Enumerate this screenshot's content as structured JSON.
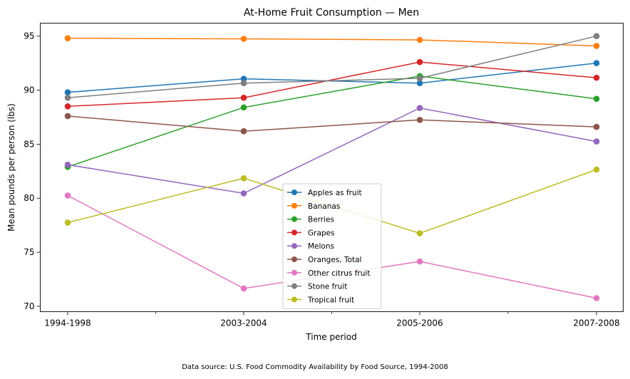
{
  "chart_data": {
    "type": "line",
    "title": "At-Home Fruit Consumption — Men",
    "xlabel": "Time period",
    "ylabel": "Mean pounds per person (lbs)",
    "categories": [
      "1994-1998",
      "2003-2004",
      "2005-2006",
      "2007-2008"
    ],
    "ylim": [
      69.5,
      96.2
    ],
    "yticks": [
      70,
      75,
      80,
      85,
      90,
      95
    ],
    "grid": false,
    "legend_position": "lower center",
    "series": [
      {
        "name": "Apples as fruit",
        "color": "#1f77b4",
        "values": [
          89.8,
          91.05,
          90.65,
          92.5
        ]
      },
      {
        "name": "Bananas",
        "color": "#ff7f0e",
        "values": [
          94.8,
          94.75,
          94.65,
          94.1
        ]
      },
      {
        "name": "Berries",
        "color": "#2ca02c",
        "values": [
          82.9,
          88.4,
          91.3,
          89.2
        ]
      },
      {
        "name": "Grapes",
        "color": "#d62728",
        "values": [
          88.5,
          89.3,
          92.6,
          91.15
        ]
      },
      {
        "name": "Melons",
        "color": "#9467bd",
        "values": [
          83.1,
          80.45,
          88.35,
          85.25
        ]
      },
      {
        "name": "Oranges, Total",
        "color": "#8c564b",
        "values": [
          87.6,
          86.2,
          87.25,
          86.6
        ]
      },
      {
        "name": "Other citrus fruit",
        "color": "#e377c2",
        "values": [
          80.25,
          71.65,
          74.15,
          70.75
        ]
      },
      {
        "name": "Stone fruit",
        "color": "#7f7f7f",
        "values": [
          89.3,
          90.65,
          91.1,
          95.0
        ]
      },
      {
        "name": "Tropical fruit",
        "color": "#bcbd22",
        "values": [
          77.75,
          81.85,
          76.75,
          82.65
        ]
      }
    ]
  },
  "footer": {
    "source": "Data source: U.S. Food Commodity Availability by Food Source, 1994-2008"
  }
}
